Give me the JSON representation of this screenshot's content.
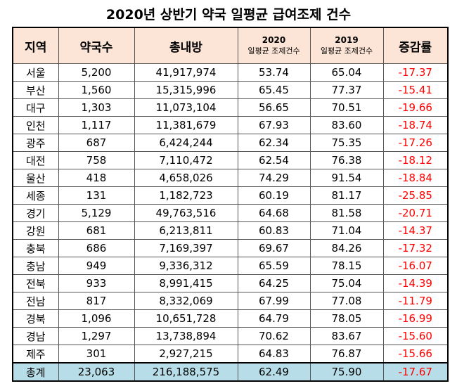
{
  "title": "2020년 상반기 약국 일평균 급여조제 건수",
  "table": {
    "header": [
      "지역",
      "약국수",
      "총내방",
      {
        "year": "2020",
        "label": "일평균 조제건수"
      },
      {
        "year": "2019",
        "label": "일평균 조제건수"
      },
      "증감률"
    ],
    "rows": [
      [
        "서울",
        "5,200",
        "41,917,974",
        "53.74",
        "65.04",
        "-17.37"
      ],
      [
        "부산",
        "1,560",
        "15,315,996",
        "65.45",
        "77.37",
        "-15.41"
      ],
      [
        "대구",
        "1,303",
        "11,073,104",
        "56.65",
        "70.51",
        "-19.66"
      ],
      [
        "인천",
        "1,117",
        "11,381,679",
        "67.93",
        "83.60",
        "-18.74"
      ],
      [
        "광주",
        "687",
        "6,424,244",
        "62.34",
        "75.35",
        "-17.26"
      ],
      [
        "대전",
        "758",
        "7,110,472",
        "62.54",
        "76.38",
        "-18.12"
      ],
      [
        "울산",
        "418",
        "4,658,026",
        "74.29",
        "91.54",
        "-18.84"
      ],
      [
        "세종",
        "131",
        "1,182,723",
        "60.19",
        "81.17",
        "-25.85"
      ],
      [
        "경기",
        "5,129",
        "49,763,516",
        "64.68",
        "81.58",
        "-20.71"
      ],
      [
        "강원",
        "681",
        "6,213,811",
        "60.83",
        "71.04",
        "-14.37"
      ],
      [
        "충북",
        "686",
        "7,169,397",
        "69.67",
        "84.26",
        "-17.32"
      ],
      [
        "충남",
        "949",
        "9,336,312",
        "65.59",
        "78.15",
        "-16.07"
      ],
      [
        "전북",
        "933",
        "8,991,415",
        "64.25",
        "75.04",
        "-14.39"
      ],
      [
        "전남",
        "817",
        "8,332,069",
        "67.99",
        "77.08",
        "-11.79"
      ],
      [
        "경북",
        "1,096",
        "10,651,728",
        "64.79",
        "78.05",
        "-16.99"
      ],
      [
        "경남",
        "1,297",
        "13,738,894",
        "70.62",
        "83.67",
        "-15.60"
      ],
      [
        "제주",
        "301",
        "2,927,215",
        "64.83",
        "76.87",
        "-15.66"
      ]
    ],
    "total": [
      "총계",
      "23,063",
      "216,188,575",
      "62.49",
      "75.90",
      "-17.67"
    ]
  }
}
